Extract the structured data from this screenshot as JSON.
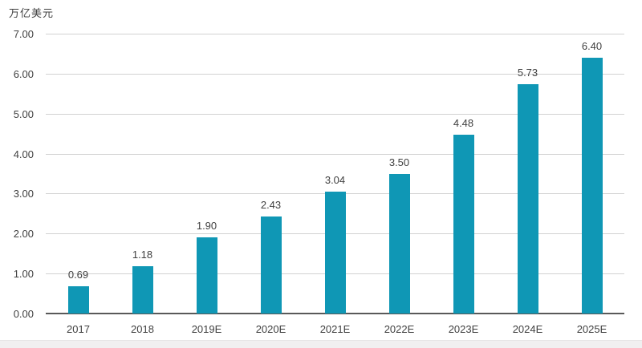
{
  "chart_data": {
    "type": "bar",
    "title": "",
    "unit_label": "万亿美元",
    "categories": [
      "2017",
      "2018",
      "2019E",
      "2020E",
      "2021E",
      "2022E",
      "2023E",
      "2024E",
      "2025E"
    ],
    "values": [
      0.69,
      1.18,
      1.9,
      2.43,
      3.04,
      3.5,
      4.48,
      5.73,
      6.4
    ],
    "value_labels": [
      "0.69",
      "1.18",
      "1.90",
      "2.43",
      "3.04",
      "3.50",
      "4.48",
      "5.73",
      "6.40"
    ],
    "ylim": [
      0,
      7
    ],
    "ytick_step": 1,
    "ytick_labels": [
      "0.00",
      "1.00",
      "2.00",
      "3.00",
      "4.00",
      "5.00",
      "6.00",
      "7.00"
    ],
    "grid": true,
    "legend": "none",
    "bar_color": "#0f97b5",
    "gridline_color": "#d2d2d2",
    "axis_line_color": "#595959",
    "label_color": "#404040"
  }
}
